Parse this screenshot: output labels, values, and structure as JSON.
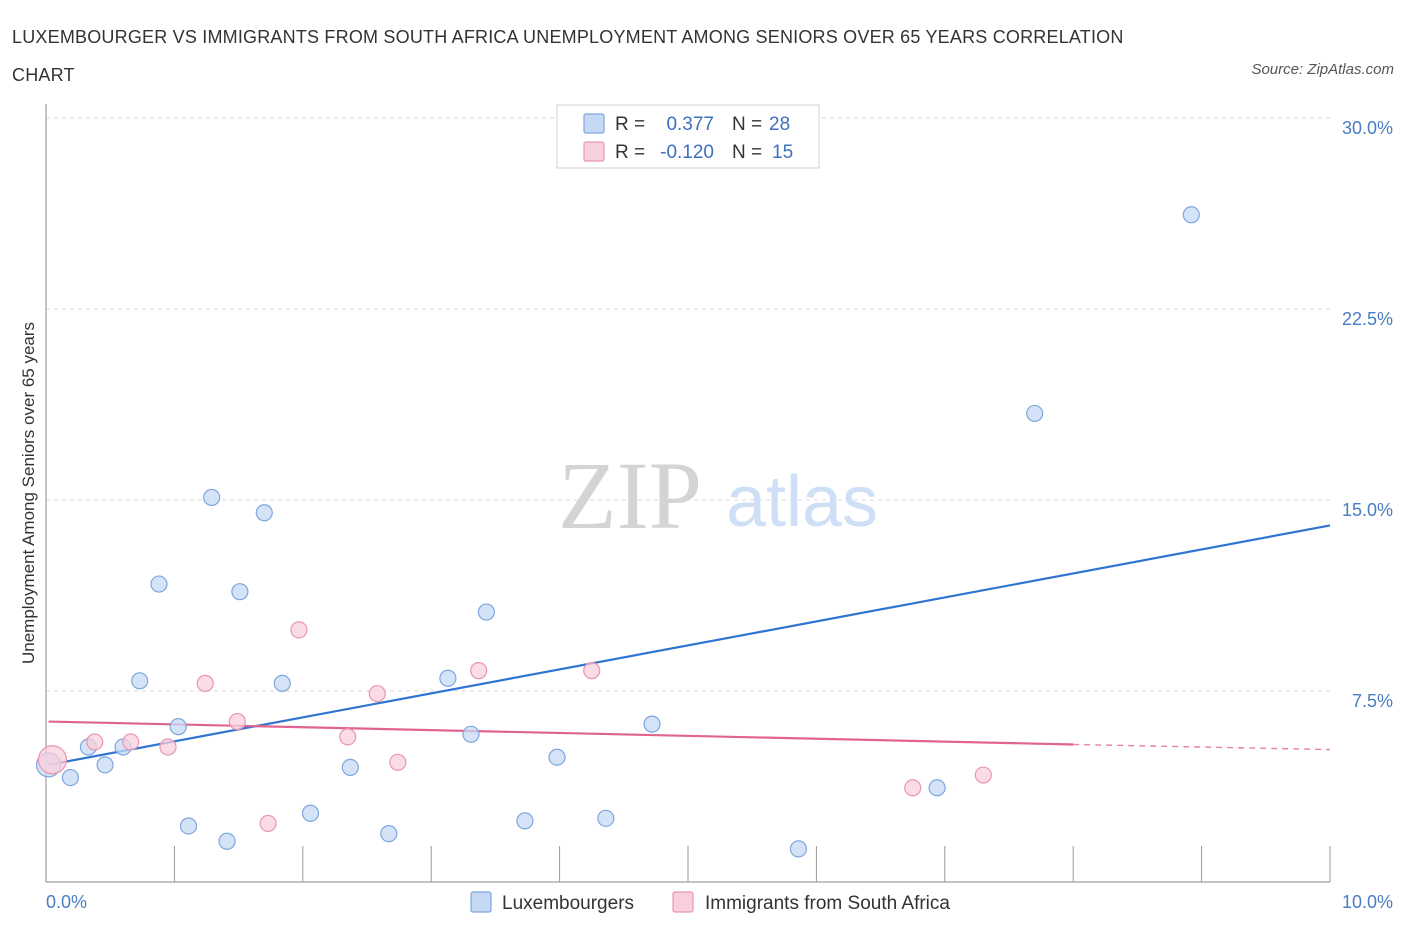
{
  "header": {
    "title": "LUXEMBOURGER VS IMMIGRANTS FROM SOUTH AFRICA UNEMPLOYMENT AMONG SENIORS OVER 65 YEARS CORRELATION CHART",
    "source": "Source: ZipAtlas.com"
  },
  "watermark": {
    "zip": "ZIP",
    "atlas": "atlas"
  },
  "colors": {
    "blue_fill": "#c5d9f4",
    "blue_stroke": "#7ea6de",
    "blue_line": "#2f74d0",
    "pink_fill": "#f9cfdc",
    "pink_stroke": "#e896b0",
    "pink_line": "#e0648f",
    "tick_label": "#4a7cc4",
    "grid": "#d9d9d9"
  },
  "legend": {
    "r_label": "R =",
    "n_label": "N =",
    "items": [
      {
        "r": "0.377",
        "n": "28"
      },
      {
        "r": "-0.120",
        "n": "15"
      }
    ]
  },
  "chart_data": {
    "type": "scatter",
    "xlabel": "",
    "ylabel": "Unemployment Among Seniors over 65 years",
    "xlim": [
      0,
      10
    ],
    "ylim": [
      0,
      30
    ],
    "x_tick_labels": [
      "0.0%",
      "10.0%"
    ],
    "y_ticks": [
      {
        "value": 7.5,
        "label": "7.5%"
      },
      {
        "value": 15,
        "label": "15.0%"
      },
      {
        "value": 22.5,
        "label": "22.5%"
      },
      {
        "value": 30,
        "label": "30.0%"
      }
    ],
    "series": [
      {
        "name": "Luxembourgers",
        "r": 0.377,
        "n": 28,
        "points": [
          [
            0.02,
            4.6,
            12
          ],
          [
            0.19,
            4.1,
            8
          ],
          [
            0.33,
            5.3,
            8
          ],
          [
            0.46,
            4.6,
            8
          ],
          [
            0.6,
            5.3,
            8
          ],
          [
            0.73,
            7.9,
            8
          ],
          [
            0.88,
            11.7,
            8
          ],
          [
            1.03,
            6.1,
            8
          ],
          [
            1.11,
            2.2,
            8
          ],
          [
            1.29,
            15.1,
            8
          ],
          [
            1.41,
            1.6,
            8
          ],
          [
            1.51,
            11.4,
            8
          ],
          [
            1.7,
            14.5,
            8
          ],
          [
            1.84,
            7.8,
            8
          ],
          [
            2.06,
            2.7,
            8
          ],
          [
            2.37,
            4.5,
            8
          ],
          [
            2.67,
            1.9,
            8
          ],
          [
            3.13,
            8.0,
            8
          ],
          [
            3.31,
            5.8,
            8
          ],
          [
            3.43,
            10.6,
            8
          ],
          [
            3.73,
            2.4,
            8
          ],
          [
            3.98,
            4.9,
            8
          ],
          [
            4.36,
            2.5,
            8
          ],
          [
            4.72,
            6.2,
            8
          ],
          [
            5.86,
            1.3,
            8
          ],
          [
            6.94,
            3.7,
            8
          ],
          [
            7.7,
            18.4,
            8
          ],
          [
            8.92,
            26.2,
            8
          ]
        ],
        "trend": {
          "x0": 0.02,
          "y0": 4.6,
          "x1": 10.0,
          "y1": 14.0
        }
      },
      {
        "name": "Immigrants from South Africa",
        "r": -0.12,
        "n": 15,
        "points": [
          [
            0.05,
            4.8,
            14
          ],
          [
            0.38,
            5.5,
            8
          ],
          [
            0.66,
            5.5,
            8
          ],
          [
            0.95,
            5.3,
            8
          ],
          [
            1.24,
            7.8,
            8
          ],
          [
            1.49,
            6.3,
            8
          ],
          [
            1.73,
            2.3,
            8
          ],
          [
            1.97,
            9.9,
            8
          ],
          [
            2.35,
            5.7,
            8
          ],
          [
            2.58,
            7.4,
            8
          ],
          [
            2.74,
            4.7,
            8
          ],
          [
            3.37,
            8.3,
            8
          ],
          [
            4.25,
            8.3,
            8
          ],
          [
            6.75,
            3.7,
            8
          ],
          [
            7.3,
            4.2,
            8
          ]
        ],
        "trend": {
          "x0": 0.02,
          "y0": 6.3,
          "x1": 8.0,
          "y1": 5.4,
          "dash_to_x": 10.0,
          "dash_to_y": 5.2
        }
      }
    ]
  }
}
